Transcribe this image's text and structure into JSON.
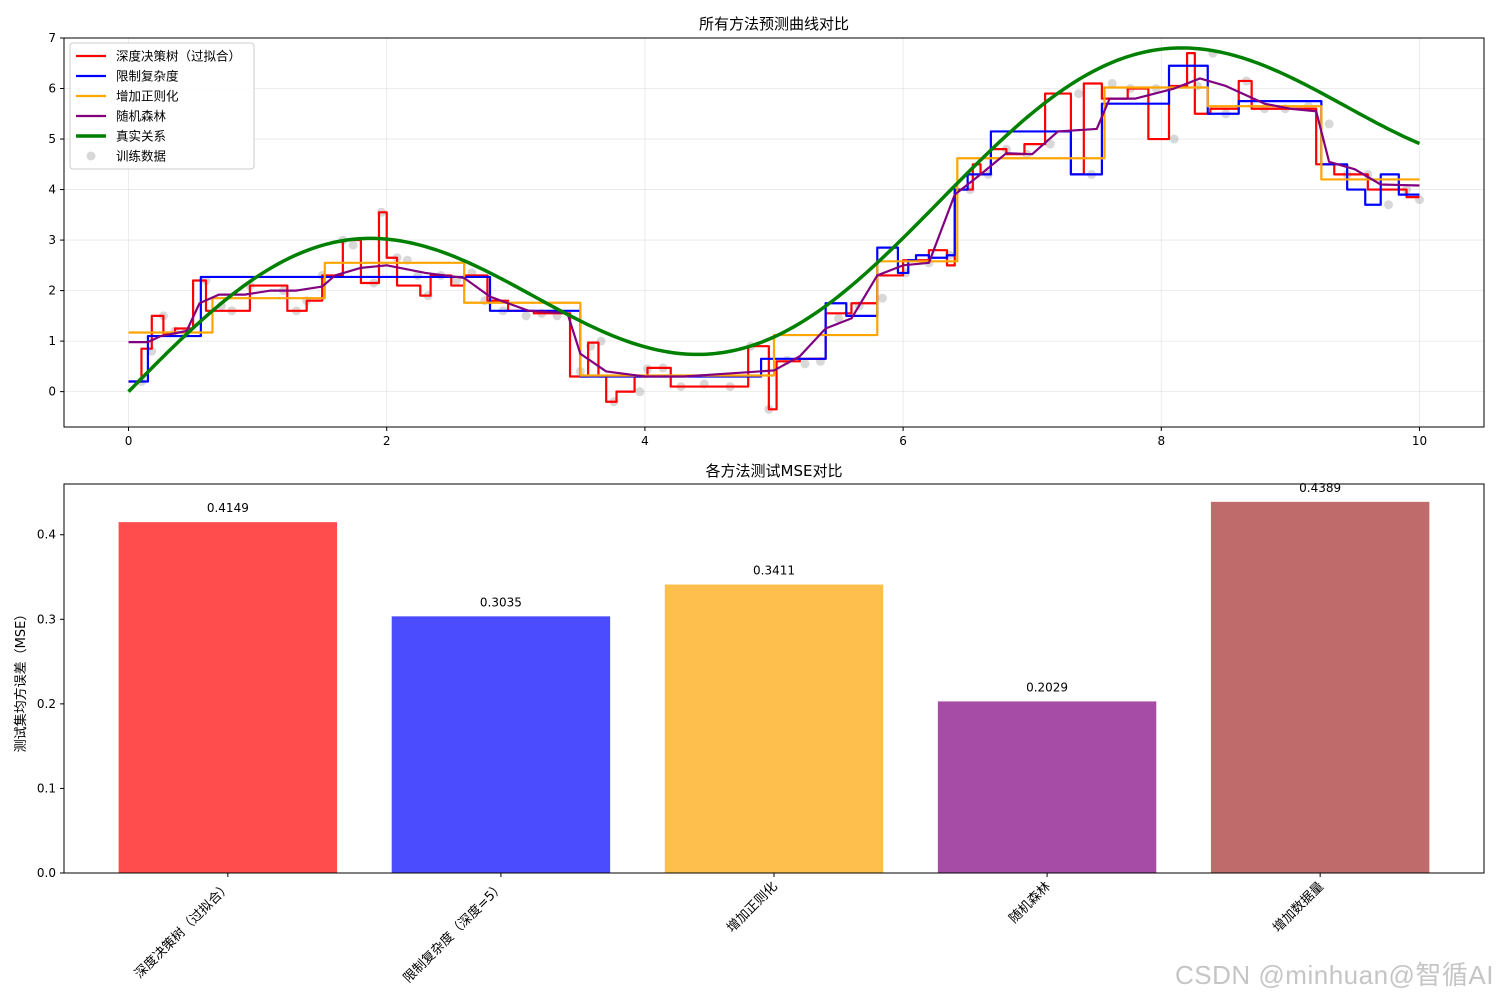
{
  "watermark": "CSDN @minhuan@智循AI",
  "chart_data": [
    {
      "type": "line",
      "title": "所有方法预测曲线对比",
      "xlabel": "",
      "ylabel": "",
      "xlim": [
        -0.5,
        10.5
      ],
      "ylim": [
        -0.7,
        7.0
      ],
      "xticks": [
        0,
        2,
        4,
        6,
        8,
        10
      ],
      "yticks": [
        0,
        1,
        2,
        3,
        4,
        5,
        6,
        7
      ],
      "grid": true,
      "legend_position": "top-left",
      "series": [
        {
          "name": "深度决策树（过拟合）",
          "color": "#ff0000",
          "step": true,
          "x": [
            0,
            0.1,
            0.18,
            0.27,
            0.36,
            0.5,
            0.6,
            0.72,
            0.94,
            1.1,
            1.23,
            1.38,
            1.5,
            1.66,
            1.8,
            1.94,
            2.0,
            2.08,
            2.26,
            2.34,
            2.5,
            2.6,
            2.78,
            2.94,
            3.14,
            3.3,
            3.42,
            3.56,
            3.64,
            3.7,
            3.78,
            3.92,
            4.02,
            4.2,
            4.44,
            4.6,
            4.8,
            4.96,
            5.02,
            5.2,
            5.4,
            5.6,
            5.8,
            6.0,
            6.2,
            6.34,
            6.4,
            6.54,
            6.6,
            6.68,
            6.8,
            6.94,
            7.1,
            7.3,
            7.4,
            7.54,
            7.74,
            7.9,
            7.96,
            8.06,
            8.2,
            8.26,
            8.38,
            8.6,
            8.7,
            9.2,
            9.34,
            9.6,
            9.9,
            10.0
          ],
          "values": [
            0.2,
            0.85,
            1.5,
            1.15,
            1.25,
            2.2,
            1.6,
            1.6,
            2.1,
            2.1,
            1.6,
            1.8,
            2.3,
            3.0,
            2.15,
            3.55,
            2.65,
            2.1,
            1.9,
            2.3,
            2.1,
            2.3,
            1.8,
            1.6,
            1.55,
            1.55,
            0.3,
            0.97,
            0.3,
            -0.2,
            0.0,
            0.3,
            0.47,
            0.1,
            0.1,
            0.1,
            0.9,
            -0.35,
            0.6,
            0.65,
            1.55,
            1.75,
            2.3,
            2.6,
            2.8,
            2.5,
            4.0,
            4.5,
            4.3,
            4.8,
            4.7,
            4.9,
            5.9,
            4.3,
            6.1,
            5.8,
            6.0,
            5.0,
            5.0,
            6.05,
            6.7,
            5.5,
            5.6,
            6.15,
            5.6,
            4.5,
            4.3,
            4.0,
            3.85,
            3.85
          ]
        },
        {
          "name": "限制复杂度",
          "color": "#0000ff",
          "step": true,
          "x": [
            0,
            0.15,
            0.56,
            2.8,
            3.5,
            4.9,
            5.4,
            5.56,
            5.8,
            5.96,
            6.04,
            6.1,
            6.2,
            6.34,
            6.4,
            6.5,
            6.6,
            6.68,
            7.1,
            7.3,
            7.54,
            8.06,
            8.36,
            8.6,
            9.24,
            9.44,
            9.58,
            9.7,
            9.84,
            10.0
          ],
          "values": [
            0.2,
            1.1,
            2.27,
            1.6,
            0.3,
            0.65,
            1.75,
            1.5,
            2.85,
            2.35,
            2.6,
            2.7,
            2.65,
            2.7,
            4.0,
            4.3,
            4.3,
            5.15,
            5.15,
            4.3,
            5.7,
            6.45,
            5.5,
            5.75,
            4.5,
            4.0,
            3.7,
            4.3,
            3.9,
            3.9
          ]
        },
        {
          "name": "增加正则化",
          "color": "#ffa500",
          "step": true,
          "x": [
            0,
            0.65,
            1.52,
            2.6,
            3.5,
            5.0,
            5.8,
            6.42,
            7.56,
            8.36,
            9.24,
            10.0
          ],
          "values": [
            1.17,
            1.85,
            2.55,
            1.76,
            0.32,
            1.12,
            2.58,
            4.62,
            6.02,
            5.65,
            4.2,
            4.2
          ]
        },
        {
          "name": "随机森林",
          "color": "#800080",
          "step": false,
          "x": [
            0,
            0.15,
            0.25,
            0.45,
            0.55,
            0.7,
            0.9,
            1.1,
            1.3,
            1.5,
            1.6,
            1.8,
            2.0,
            2.3,
            2.6,
            2.8,
            3.1,
            3.4,
            3.5,
            3.7,
            4.0,
            4.3,
            4.6,
            5.0,
            5.2,
            5.4,
            5.6,
            5.8,
            6.0,
            6.2,
            6.4,
            6.6,
            6.8,
            7.0,
            7.2,
            7.5,
            7.6,
            7.8,
            8.1,
            8.3,
            8.5,
            8.8,
            9.0,
            9.2,
            9.3,
            9.5,
            9.7,
            10.0
          ],
          "values": [
            0.98,
            0.98,
            1.1,
            1.2,
            1.75,
            1.92,
            1.92,
            2.0,
            2.0,
            2.08,
            2.3,
            2.45,
            2.5,
            2.35,
            2.25,
            1.88,
            1.6,
            1.55,
            0.75,
            0.4,
            0.3,
            0.3,
            0.35,
            0.42,
            0.7,
            1.25,
            1.45,
            2.3,
            2.5,
            2.55,
            3.9,
            4.3,
            4.72,
            4.7,
            5.15,
            5.2,
            5.8,
            5.8,
            6.0,
            6.2,
            6.05,
            5.7,
            5.6,
            5.55,
            4.55,
            4.4,
            4.1,
            4.08
          ]
        },
        {
          "name": "真实关系",
          "color": "#008000",
          "step": false,
          "function": "2*sin(x)+0.6*x"
        },
        {
          "name": "训练数据",
          "color": "#a9a9a9",
          "type": "scatter",
          "x": [
            0.1,
            0.18,
            0.27,
            0.36,
            0.44,
            0.6,
            0.72,
            0.8,
            0.94,
            1.2,
            1.3,
            1.38,
            1.5,
            1.66,
            1.74,
            1.9,
            1.96,
            2.08,
            2.16,
            2.24,
            2.32,
            2.42,
            2.54,
            2.66,
            2.76,
            2.9,
            3.08,
            3.2,
            3.32,
            3.5,
            3.58,
            3.66,
            3.76,
            3.96,
            4.02,
            4.14,
            4.28,
            4.46,
            4.66,
            4.82,
            4.96,
            5.1,
            5.24,
            5.36,
            5.5,
            5.66,
            5.84,
            6.02,
            6.2,
            6.36,
            6.52,
            6.66,
            6.8,
            6.96,
            7.14,
            7.36,
            7.46,
            7.62,
            7.76,
            7.96,
            8.1,
            8.28,
            8.4,
            8.5,
            8.66,
            8.8,
            8.96,
            9.14,
            9.3,
            9.44,
            9.6,
            9.76,
            9.9,
            10.0
          ],
          "values": [
            0.2,
            0.8,
            1.5,
            1.2,
            1.15,
            2.2,
            1.7,
            1.6,
            2.1,
            2.0,
            1.6,
            1.8,
            2.3,
            3.0,
            2.9,
            2.15,
            3.55,
            2.65,
            2.6,
            2.3,
            1.9,
            2.3,
            2.2,
            2.35,
            1.8,
            1.6,
            1.5,
            1.55,
            1.5,
            0.4,
            0.9,
            1.0,
            -0.2,
            0.0,
            0.45,
            0.47,
            0.1,
            0.15,
            0.1,
            0.9,
            -0.35,
            0.62,
            0.55,
            0.6,
            1.45,
            1.7,
            1.85,
            2.35,
            2.55,
            2.7,
            4.0,
            4.3,
            4.8,
            4.7,
            4.9,
            5.9,
            4.3,
            6.1,
            6.0,
            6.0,
            5.0,
            6.05,
            6.7,
            5.5,
            6.15,
            5.6,
            5.6,
            5.65,
            5.3,
            4.3,
            4.3,
            3.7,
            4.0,
            3.8
          ]
        }
      ]
    },
    {
      "type": "bar",
      "title": "各方法测试MSE对比",
      "xlabel": "",
      "ylabel": "测试集均方误差（MSE）",
      "ylim": [
        0,
        0.46
      ],
      "yticks": [
        0.0,
        0.1,
        0.2,
        0.3,
        0.4
      ],
      "categories": [
        "深度决策树（过拟合）",
        "限制复杂度（深度=5）",
        "增加正则化",
        "随机森林",
        "增加数据量"
      ],
      "values": [
        0.4149,
        0.3035,
        0.3411,
        0.2029,
        0.4389
      ],
      "value_labels": [
        "0.4149",
        "0.3035",
        "0.3411",
        "0.2029",
        "0.4389"
      ],
      "colors": [
        "#ff4c4c",
        "#4c4cff",
        "#ffbf4c",
        "#a64ca6",
        "#bf6b6b"
      ],
      "grid": false
    }
  ]
}
